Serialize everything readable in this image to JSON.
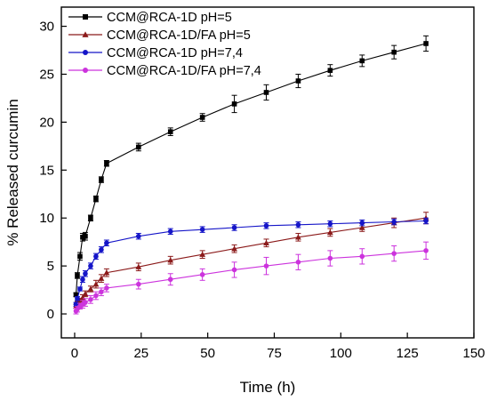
{
  "chart_data": {
    "type": "line",
    "xlabel": "Time (h)",
    "ylabel": "% Released curcumin",
    "xlim": [
      -5,
      150
    ],
    "ylim": [
      -2.5,
      32
    ],
    "xticks": [
      0,
      25,
      50,
      75,
      100,
      125,
      150
    ],
    "yticks": [
      0,
      5,
      10,
      15,
      20,
      25,
      30
    ],
    "legend_position": "top-left",
    "grid": false,
    "series": [
      {
        "name": "CCM@RCA-1D pH=5",
        "color": "#000000",
        "marker": "square",
        "x": [
          0.5,
          1,
          2,
          3,
          4,
          6,
          8,
          10,
          12,
          24,
          36,
          48,
          60,
          72,
          84,
          96,
          108,
          120,
          132
        ],
        "y": [
          2.0,
          4.0,
          6.0,
          8.0,
          8.1,
          10.0,
          12.0,
          14.0,
          15.7,
          17.4,
          19.0,
          20.5,
          21.9,
          23.1,
          24.3,
          25.4,
          26.4,
          27.3,
          28.2
        ],
        "err": [
          0.2,
          0.3,
          0.4,
          0.4,
          0.4,
          0.3,
          0.3,
          0.3,
          0.3,
          0.4,
          0.4,
          0.4,
          0.9,
          0.8,
          0.7,
          0.6,
          0.6,
          0.7,
          0.8
        ]
      },
      {
        "name": "CCM@RCA-1D/FA pH=5",
        "color": "#8b1a1a",
        "marker": "triangle",
        "x": [
          0.5,
          1,
          2,
          3,
          4,
          6,
          8,
          10,
          12,
          24,
          36,
          48,
          60,
          72,
          84,
          96,
          108,
          120,
          132
        ],
        "y": [
          0.8,
          1.1,
          1.4,
          1.7,
          2.1,
          2.6,
          3.1,
          3.7,
          4.3,
          4.9,
          5.6,
          6.2,
          6.8,
          7.4,
          8.0,
          8.5,
          9.0,
          9.5,
          10.0
        ],
        "err": [
          0.2,
          0.2,
          0.2,
          0.3,
          0.3,
          0.3,
          0.4,
          0.4,
          0.4,
          0.4,
          0.4,
          0.4,
          0.4,
          0.4,
          0.4,
          0.4,
          0.4,
          0.5,
          0.6
        ]
      },
      {
        "name": "CCM@RCA-1D pH=7,4",
        "color": "#1515c8",
        "marker": "circle",
        "x": [
          0.5,
          1,
          2,
          3,
          4,
          6,
          8,
          10,
          12,
          24,
          36,
          48,
          60,
          72,
          84,
          96,
          108,
          120,
          132
        ],
        "y": [
          1.0,
          1.6,
          2.6,
          3.6,
          4.2,
          5.0,
          6.0,
          6.7,
          7.4,
          8.1,
          8.6,
          8.8,
          9.0,
          9.2,
          9.3,
          9.4,
          9.5,
          9.6,
          9.7
        ],
        "err": [
          0.2,
          0.2,
          0.2,
          0.3,
          0.3,
          0.3,
          0.3,
          0.3,
          0.3,
          0.3,
          0.3,
          0.3,
          0.3,
          0.3,
          0.3,
          0.3,
          0.3,
          0.3,
          0.3
        ]
      },
      {
        "name": "CCM@RCA-1D/FA pH=7,4",
        "color": "#cc33dd",
        "marker": "circle",
        "x": [
          0.5,
          1,
          2,
          3,
          4,
          6,
          8,
          10,
          12,
          24,
          36,
          48,
          60,
          72,
          84,
          96,
          108,
          120,
          132
        ],
        "y": [
          0.3,
          0.5,
          0.8,
          1.0,
          1.2,
          1.5,
          1.9,
          2.3,
          2.7,
          3.1,
          3.6,
          4.1,
          4.6,
          5.0,
          5.4,
          5.8,
          6.0,
          6.3,
          6.6
        ],
        "err": [
          0.3,
          0.3,
          0.3,
          0.4,
          0.4,
          0.4,
          0.4,
          0.4,
          0.4,
          0.5,
          0.6,
          0.6,
          0.8,
          0.9,
          0.8,
          0.8,
          0.8,
          0.8,
          0.9
        ]
      }
    ]
  }
}
